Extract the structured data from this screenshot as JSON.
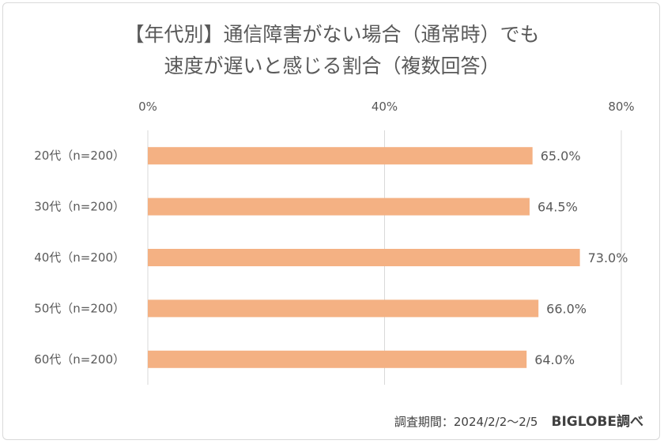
{
  "chart_data": {
    "type": "bar",
    "orientation": "horizontal",
    "title_lines": [
      "【年代別】通信障害がない場合（通常時）でも",
      "速度が遅いと感じる割合（複数回答）"
    ],
    "categories": [
      "20代（n=200）",
      "30代（n=200）",
      "40代（n=200）",
      "50代（n=200）",
      "60代（n=200）"
    ],
    "values": [
      65.0,
      64.5,
      73.0,
      66.0,
      64.0
    ],
    "value_labels": [
      "65.0%",
      "64.5%",
      "73.0%",
      "66.0%",
      "64.0%"
    ],
    "xlim": [
      0,
      80
    ],
    "xticks": [
      0,
      40,
      80
    ],
    "xtick_labels": [
      "0%",
      "40%",
      "80%"
    ],
    "x_axis_position": "top",
    "grid": true,
    "legend": "none",
    "bar_color": "#f4b183",
    "grid_color": "#d9d9d9"
  },
  "footer": {
    "period": "調査期間：2024/2/2～2/5",
    "brand": "BIGLOBE調べ"
  }
}
